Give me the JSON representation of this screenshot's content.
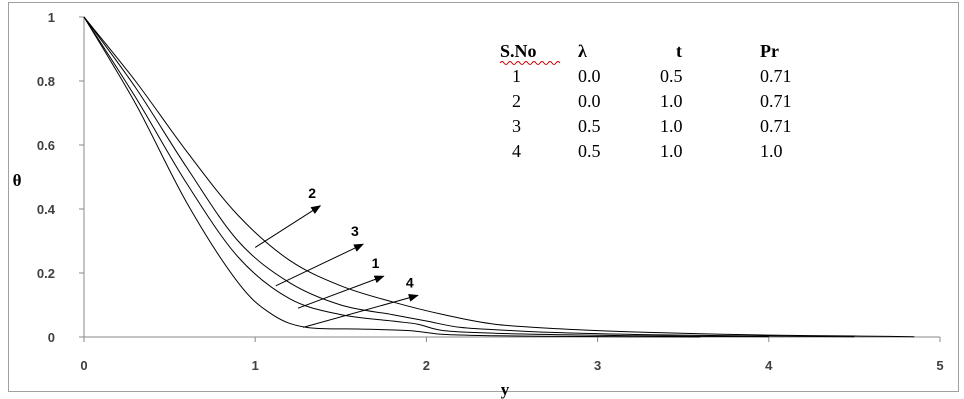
{
  "chart_data": {
    "type": "line",
    "xlabel": "y",
    "ylabel": "θ",
    "xlim": [
      0,
      5
    ],
    "ylim": [
      0,
      1
    ],
    "xticks": [
      "0",
      "1",
      "2",
      "3",
      "4",
      "5"
    ],
    "yticks": [
      "0",
      "0.2",
      "0.4",
      "0.6",
      "0.8",
      "1"
    ],
    "grid": false,
    "legend_table": {
      "headers": [
        "S.No",
        "λ",
        "t",
        "Pr"
      ],
      "rows": [
        [
          "1",
          "0.0",
          "0.5",
          "0.71"
        ],
        [
          "2",
          "0.0",
          "1.0",
          "0.71"
        ],
        [
          "3",
          "0.5",
          "1.0",
          "0.71"
        ],
        [
          "4",
          "0.5",
          "1.0",
          "1.0"
        ]
      ]
    },
    "series": [
      {
        "label": "2",
        "x": [
          0,
          0.3,
          0.6,
          0.9,
          1.2,
          1.5,
          1.8,
          2.1,
          2.4,
          2.8,
          3.2,
          3.6,
          4.0,
          4.5,
          4.85
        ],
        "y": [
          1,
          0.8,
          0.58,
          0.38,
          0.24,
          0.16,
          0.11,
          0.07,
          0.04,
          0.025,
          0.016,
          0.01,
          0.006,
          0.003,
          0.001
        ]
      },
      {
        "label": "3",
        "x": [
          0,
          0.3,
          0.6,
          0.9,
          1.2,
          1.5,
          1.8,
          2.0,
          2.2,
          2.5,
          2.8,
          3.2,
          3.6,
          4.0,
          4.5
        ],
        "y": [
          1,
          0.78,
          0.53,
          0.3,
          0.17,
          0.1,
          0.07,
          0.05,
          0.03,
          0.02,
          0.013,
          0.008,
          0.005,
          0.003,
          0.001
        ]
      },
      {
        "label": "1",
        "x": [
          0,
          0.3,
          0.6,
          0.9,
          1.2,
          1.5,
          1.8,
          1.95,
          2.1,
          2.4,
          2.8,
          3.2,
          3.6,
          4.0
        ],
        "y": [
          1,
          0.75,
          0.48,
          0.25,
          0.12,
          0.07,
          0.05,
          0.04,
          0.02,
          0.012,
          0.007,
          0.004,
          0.002,
          0.001
        ]
      },
      {
        "label": "4",
        "x": [
          0,
          0.3,
          0.6,
          0.9,
          1.1,
          1.3,
          1.6,
          1.9,
          2.1,
          2.4,
          2.8,
          3.2,
          3.6
        ],
        "y": [
          1,
          0.73,
          0.42,
          0.17,
          0.07,
          0.03,
          0.025,
          0.02,
          0.008,
          0.004,
          0.002,
          0.001,
          0.0
        ]
      }
    ],
    "annotations": [
      {
        "text": "2",
        "arrow_from": [
          1.0,
          0.28
        ],
        "arrow_to": [
          1.38,
          0.41
        ]
      },
      {
        "text": "3",
        "arrow_from": [
          1.12,
          0.16
        ],
        "arrow_to": [
          1.63,
          0.29
        ]
      },
      {
        "text": "1",
        "arrow_from": [
          1.25,
          0.09
        ],
        "arrow_to": [
          1.75,
          0.19
        ]
      },
      {
        "text": "4",
        "arrow_from": [
          1.28,
          0.03
        ],
        "arrow_to": [
          1.95,
          0.13
        ]
      }
    ]
  }
}
